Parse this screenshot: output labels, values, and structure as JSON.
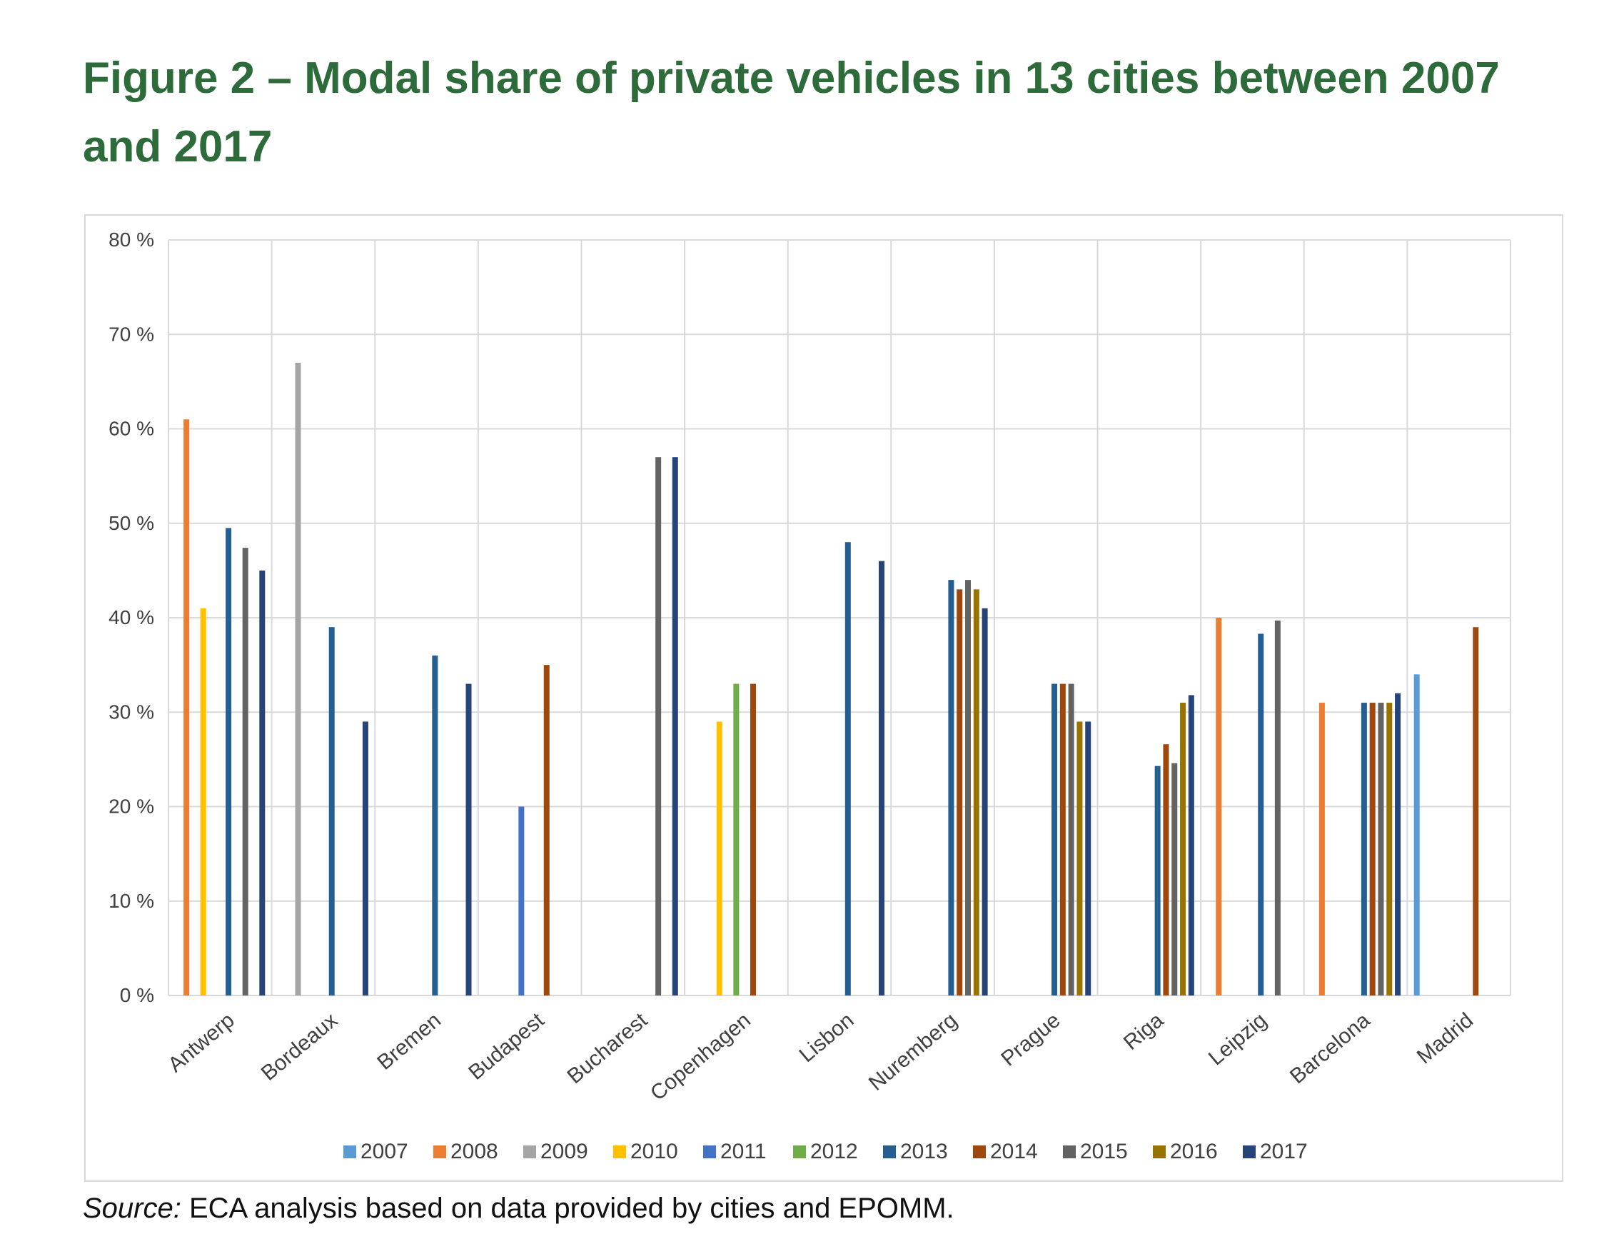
{
  "title": "Figure 2 – Modal share of private vehicles in 13 cities between 2007 and 2017",
  "source": {
    "label": "Source:",
    "text": " ECA analysis based on data provided by cities and EPOMM."
  },
  "chart_data": {
    "type": "bar",
    "title": "",
    "xlabel": "",
    "ylabel": "",
    "ylim": [
      0,
      80
    ],
    "yticks": [
      0,
      10,
      20,
      30,
      40,
      50,
      60,
      70,
      80
    ],
    "ytick_labels": [
      "0 %",
      "10 %",
      "20 %",
      "30 %",
      "40 %",
      "50 %",
      "60 %",
      "70 %",
      "80 %"
    ],
    "grid": true,
    "legend": "bottom",
    "categories": [
      "Antwerp",
      "Bordeaux",
      "Bremen",
      "Budapest",
      "Bucharest",
      "Copenhagen",
      "Lisbon",
      "Nuremberg",
      "Prague",
      "Riga",
      "Leipzig",
      "Barcelona",
      "Madrid"
    ],
    "series": [
      {
        "name": "2007",
        "color": "#5b9bd5",
        "values": [
          null,
          null,
          null,
          null,
          null,
          null,
          null,
          null,
          null,
          null,
          null,
          null,
          34
        ]
      },
      {
        "name": "2008",
        "color": "#ed7d31",
        "values": [
          61,
          null,
          null,
          null,
          null,
          null,
          null,
          null,
          null,
          null,
          40,
          31,
          null
        ]
      },
      {
        "name": "2009",
        "color": "#a5a5a5",
        "values": [
          null,
          67,
          null,
          null,
          null,
          null,
          null,
          null,
          null,
          null,
          null,
          null,
          null
        ]
      },
      {
        "name": "2010",
        "color": "#ffc000",
        "values": [
          41,
          null,
          null,
          null,
          null,
          29,
          null,
          null,
          null,
          null,
          null,
          null,
          null
        ]
      },
      {
        "name": "2011",
        "color": "#4472c4",
        "values": [
          null,
          null,
          null,
          20,
          null,
          null,
          null,
          null,
          null,
          null,
          null,
          null,
          null
        ]
      },
      {
        "name": "2012",
        "color": "#70ad47",
        "values": [
          null,
          null,
          null,
          null,
          null,
          33,
          null,
          null,
          null,
          null,
          null,
          null,
          null
        ]
      },
      {
        "name": "2013",
        "color": "#255e91",
        "values": [
          49.5,
          39,
          36,
          null,
          null,
          null,
          48,
          44,
          33,
          24.3,
          38.3,
          31,
          null
        ]
      },
      {
        "name": "2014",
        "color": "#9e480e",
        "values": [
          null,
          null,
          null,
          35,
          null,
          33,
          null,
          43,
          33,
          26.6,
          null,
          31,
          39
        ]
      },
      {
        "name": "2015",
        "color": "#636363",
        "values": [
          47.4,
          null,
          null,
          null,
          57,
          null,
          null,
          44,
          33,
          24.6,
          39.7,
          31,
          null
        ]
      },
      {
        "name": "2016",
        "color": "#997300",
        "values": [
          null,
          null,
          null,
          null,
          null,
          null,
          null,
          43,
          29,
          31,
          null,
          31,
          null
        ]
      },
      {
        "name": "2017",
        "color": "#264478",
        "values": [
          45,
          29,
          33,
          null,
          57,
          null,
          46,
          41,
          29,
          31.8,
          null,
          32,
          null
        ]
      }
    ]
  }
}
